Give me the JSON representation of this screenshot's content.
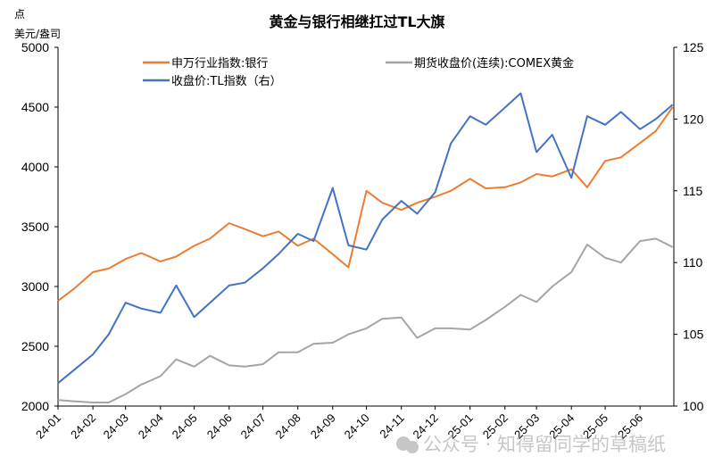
{
  "chart_data": {
    "type": "line",
    "title": "黄金与银行相继扛过TL大旗",
    "ylabel_left_line1": "点",
    "ylabel_left_line2": "美元/盎司",
    "ylim_left": [
      2000,
      5000
    ],
    "yticks_left": [
      2000,
      2500,
      3000,
      3500,
      4000,
      4500,
      5000
    ],
    "ylim_right": [
      100,
      125
    ],
    "yticks_right": [
      100,
      105,
      110,
      115,
      120,
      125
    ],
    "xlim": [
      "2024-01-01",
      "2025-07-01"
    ],
    "xtick_labels": [
      "24-01",
      "24-02",
      "24-03",
      "24-04",
      "24-05",
      "24-06",
      "24-07",
      "24-08",
      "24-09",
      "24-10",
      "24-11",
      "24-12",
      "25-01",
      "25-02",
      "25-03",
      "25-04",
      "25-05",
      "25-06"
    ],
    "xtick_dates": [
      "2024-01-01",
      "2024-02-01",
      "2024-03-01",
      "2024-04-01",
      "2024-05-01",
      "2024-06-01",
      "2024-07-01",
      "2024-08-01",
      "2024-09-01",
      "2024-10-01",
      "2024-11-01",
      "2024-12-01",
      "2025-01-01",
      "2025-02-01",
      "2025-03-01",
      "2025-04-01",
      "2025-05-01",
      "2025-06-01"
    ],
    "grid": false,
    "legend_placement": "top",
    "x": [
      "2024-01-01",
      "2024-01-15",
      "2024-02-01",
      "2024-02-15",
      "2024-03-01",
      "2024-03-15",
      "2024-04-01",
      "2024-04-15",
      "2024-05-01",
      "2024-05-15",
      "2024-06-01",
      "2024-06-15",
      "2024-07-01",
      "2024-07-15",
      "2024-08-01",
      "2024-08-15",
      "2024-09-01",
      "2024-09-15",
      "2024-10-01",
      "2024-10-15",
      "2024-11-01",
      "2024-11-15",
      "2024-12-01",
      "2024-12-15",
      "2025-01-01",
      "2025-01-15",
      "2025-02-01",
      "2025-02-15",
      "2025-03-01",
      "2025-03-15",
      "2025-04-01",
      "2025-04-15",
      "2025-05-01",
      "2025-05-15",
      "2025-06-01",
      "2025-06-15",
      "2025-06-30"
    ],
    "series": [
      {
        "name": "申万行业指数:银行",
        "axis": "left",
        "color": "#ED7D31",
        "values": [
          2880,
          2980,
          3120,
          3150,
          3230,
          3280,
          3210,
          3250,
          3340,
          3400,
          3530,
          3480,
          3420,
          3460,
          3340,
          3400,
          3270,
          3160,
          3800,
          3700,
          3640,
          3700,
          3750,
          3800,
          3900,
          3820,
          3830,
          3870,
          3940,
          3920,
          3980,
          3830,
          4050,
          4080,
          4200,
          4300,
          4500
        ]
      },
      {
        "name": "期货收盘价(连续):COMEX黄金",
        "axis": "left",
        "color": "#A5A5A5",
        "values": [
          2050,
          2040,
          2030,
          2030,
          2100,
          2180,
          2250,
          2390,
          2330,
          2420,
          2340,
          2330,
          2350,
          2450,
          2450,
          2520,
          2530,
          2600,
          2650,
          2730,
          2740,
          2570,
          2650,
          2650,
          2640,
          2720,
          2830,
          2930,
          2870,
          3000,
          3120,
          3350,
          3240,
          3200,
          3380,
          3400,
          3330
        ]
      },
      {
        "name": "收盘价:TL指数（右）",
        "axis": "right",
        "color": "#4472C4",
        "values": [
          101.6,
          102.5,
          103.6,
          105.0,
          107.2,
          106.8,
          106.5,
          108.4,
          106.2,
          107.2,
          108.4,
          108.6,
          109.6,
          110.6,
          112.0,
          111.5,
          115.2,
          111.2,
          110.9,
          113.0,
          114.3,
          113.4,
          114.9,
          118.3,
          120.2,
          119.6,
          120.8,
          121.8,
          117.7,
          118.9,
          115.9,
          120.2,
          119.6,
          120.5,
          119.3,
          120.0,
          121.0
        ]
      }
    ]
  },
  "watermark": "公众号 · 知得留同学的草稿纸",
  "watermark_icon": "wechat-icon"
}
